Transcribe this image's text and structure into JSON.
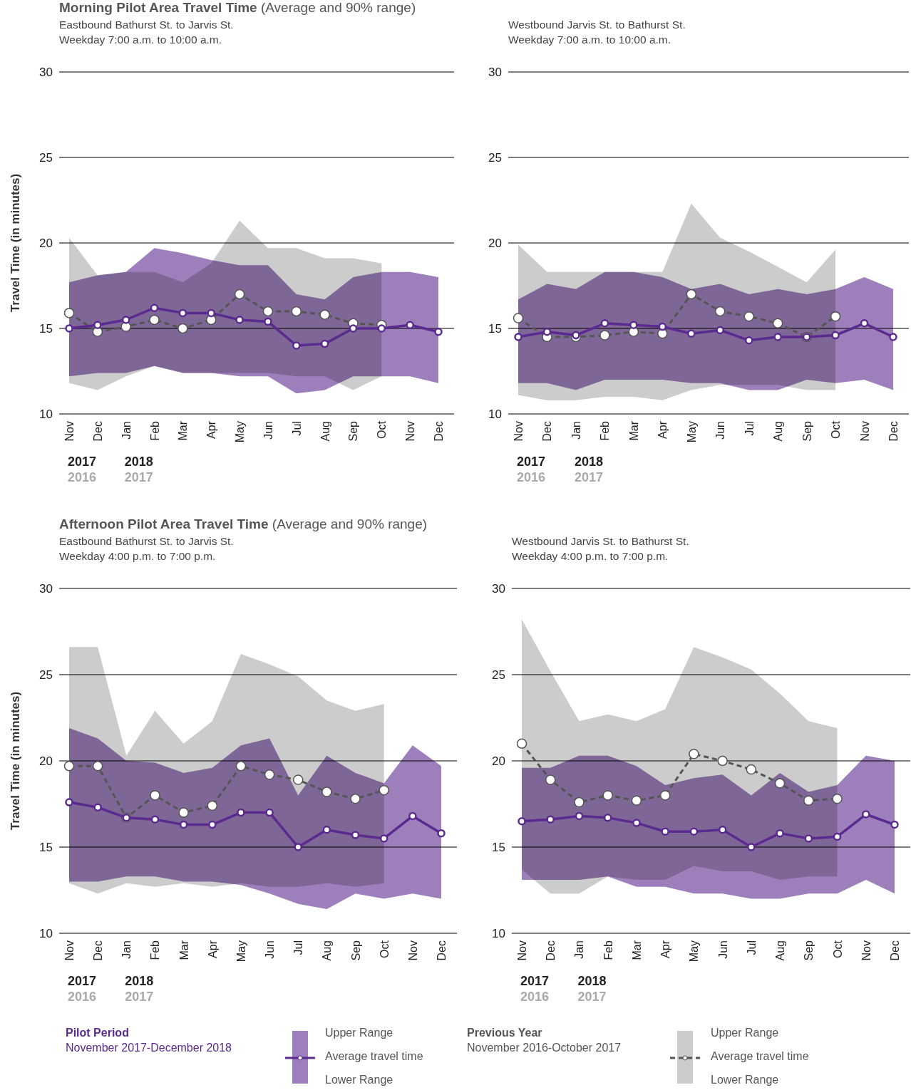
{
  "chart_data": [
    {
      "type": "line",
      "title": "Morning Pilot Area Travel Time (Average and 90% range)",
      "subtitle": "Eastbound Bathurst St. to Jarvis St.\nWeekday 7:00 a.m. to 10:00 a.m.",
      "ylabel": "Travel Time (in minutes)",
      "categories": [
        "Nov",
        "Dec",
        "Jan",
        "Feb",
        "Mar",
        "Apr",
        "May",
        "Jun",
        "Jul",
        "Aug",
        "Sep",
        "Oct",
        "Nov",
        "Dec"
      ],
      "ylim": [
        10,
        30
      ],
      "yticks": [
        10,
        15,
        20,
        25,
        30
      ],
      "grid": "y",
      "marker": "circle",
      "annotations": [
        "2017",
        "2016",
        "2018",
        "2017"
      ],
      "series": [
        {
          "color": "#5b2a8e",
          "values": [
            15.0,
            15.2,
            15.5,
            16.2,
            15.9,
            15.9,
            15.5,
            15.4,
            14.0,
            14.1,
            15.0,
            15.0,
            15.2,
            14.8
          ],
          "upper": [
            17.7,
            18.1,
            18.3,
            19.7,
            19.4,
            19.0,
            18.7,
            18.7,
            17.0,
            16.7,
            18.0,
            18.3,
            18.3,
            18.0
          ],
          "lower": [
            12.2,
            12.4,
            12.4,
            12.8,
            12.4,
            12.4,
            12.2,
            12.2,
            11.2,
            11.4,
            12.2,
            12.2,
            12.2,
            11.8
          ]
        },
        {
          "color": "#555555",
          "line_style": "dashed",
          "values": [
            15.9,
            14.8,
            15.1,
            15.5,
            15.0,
            15.5,
            17.0,
            16.0,
            16.0,
            15.8,
            15.3,
            15.2,
            null,
            null
          ],
          "upper": [
            20.3,
            18.1,
            18.3,
            18.3,
            17.7,
            18.8,
            21.3,
            19.7,
            19.7,
            19.1,
            19.1,
            18.8,
            null,
            null
          ],
          "lower": [
            11.8,
            11.4,
            12.2,
            12.8,
            12.4,
            12.4,
            12.4,
            12.4,
            12.2,
            12.2,
            11.4,
            12.2,
            null,
            null
          ]
        }
      ]
    },
    {
      "type": "line",
      "subtitle": "Westbound Jarvis St. to Bathurst St.\nWeekday 7:00 a.m. to 10:00 a.m.",
      "categories": [
        "Nov",
        "Dec",
        "Jan",
        "Feb",
        "Mar",
        "Apr",
        "May",
        "Jun",
        "Jul",
        "Aug",
        "Sep",
        "Oct",
        "Nov",
        "Dec"
      ],
      "ylim": [
        10,
        30
      ],
      "yticks": [
        10,
        15,
        20,
        25,
        30
      ],
      "grid": "y",
      "marker": "circle",
      "annotations": [
        "2017",
        "2016",
        "2018",
        "2017"
      ],
      "series": [
        {
          "color": "#5b2a8e",
          "values": [
            14.5,
            14.8,
            14.6,
            15.3,
            15.2,
            15.1,
            14.7,
            14.9,
            14.3,
            14.5,
            14.5,
            14.6,
            15.3,
            14.5
          ],
          "upper": [
            16.7,
            17.6,
            17.3,
            18.3,
            18.3,
            18.0,
            17.3,
            17.6,
            17.0,
            17.3,
            17.0,
            17.3,
            18.0,
            17.3
          ],
          "lower": [
            11.8,
            11.8,
            11.4,
            12.0,
            12.0,
            12.0,
            11.8,
            11.8,
            11.4,
            11.4,
            12.0,
            11.8,
            12.0,
            11.4
          ]
        },
        {
          "color": "#555555",
          "line_style": "dashed",
          "values": [
            15.6,
            14.5,
            14.5,
            14.6,
            14.8,
            14.7,
            17.0,
            16.0,
            15.7,
            15.3,
            14.5,
            15.7,
            null,
            null
          ],
          "upper": [
            19.9,
            18.3,
            18.3,
            18.3,
            18.3,
            18.3,
            22.3,
            20.3,
            19.5,
            18.6,
            17.7,
            19.6,
            null,
            null
          ],
          "lower": [
            11.1,
            10.8,
            10.8,
            11.0,
            11.0,
            10.8,
            11.4,
            11.7,
            11.7,
            11.7,
            11.4,
            11.4,
            null,
            null
          ]
        }
      ]
    },
    {
      "type": "line",
      "title": "Afternoon Pilot Area Travel Time (Average and 90% range)",
      "subtitle": "Eastbound Bathurst St. to Jarvis St.\nWeekday 4:00 p.m. to 7:00 p.m.",
      "ylabel": "Travel Time (in minutes)",
      "categories": [
        "Nov",
        "Dec",
        "Jan",
        "Feb",
        "Mar",
        "Apr",
        "May",
        "Jun",
        "Jul",
        "Aug",
        "Sep",
        "Oct",
        "Nov",
        "Dec"
      ],
      "ylim": [
        10,
        30
      ],
      "yticks": [
        10,
        15,
        20,
        25,
        30
      ],
      "grid": "y",
      "marker": "circle",
      "annotations": [
        "2017",
        "2016",
        "2018",
        "2017"
      ],
      "series": [
        {
          "color": "#5b2a8e",
          "values": [
            17.6,
            17.3,
            16.7,
            16.6,
            16.3,
            16.3,
            17.0,
            17.0,
            15.0,
            16.0,
            15.7,
            15.5,
            16.8,
            15.8
          ],
          "upper": [
            21.9,
            21.3,
            20.0,
            19.9,
            19.3,
            19.6,
            20.9,
            21.3,
            18.0,
            20.3,
            19.3,
            18.7,
            20.9,
            19.7
          ],
          "lower": [
            13.0,
            13.0,
            13.3,
            13.3,
            13.0,
            13.0,
            12.8,
            12.3,
            11.7,
            11.4,
            12.3,
            12.0,
            12.3,
            12.0
          ]
        },
        {
          "color": "#555555",
          "line_style": "dashed",
          "values": [
            19.7,
            19.7,
            16.7,
            18.0,
            17.0,
            17.4,
            19.7,
            19.2,
            18.9,
            18.2,
            17.8,
            18.3,
            null,
            null
          ],
          "upper": [
            26.6,
            26.6,
            20.3,
            22.9,
            21.0,
            22.3,
            26.2,
            25.6,
            24.9,
            23.5,
            22.9,
            23.3,
            null,
            null
          ],
          "lower": [
            12.9,
            12.3,
            12.9,
            12.7,
            12.9,
            12.7,
            12.9,
            12.7,
            12.7,
            12.9,
            12.7,
            12.9,
            null,
            null
          ]
        }
      ]
    },
    {
      "type": "line",
      "subtitle": "Westbound Jarvis St. to Bathurst St.\nWeekday 4:00 p.m. to 7:00 p.m.",
      "categories": [
        "Nov",
        "Dec",
        "Jan",
        "Feb",
        "Mar",
        "Apr",
        "May",
        "Jun",
        "Jul",
        "Aug",
        "Sep",
        "Oct",
        "Nov",
        "Dec"
      ],
      "ylim": [
        10,
        30
      ],
      "yticks": [
        10,
        15,
        20,
        25,
        30
      ],
      "grid": "y",
      "marker": "circle",
      "annotations": [
        "2017",
        "2016",
        "2018",
        "2017"
      ],
      "series": [
        {
          "color": "#5b2a8e",
          "values": [
            16.5,
            16.6,
            16.8,
            16.7,
            16.4,
            15.9,
            15.9,
            16.0,
            15.0,
            15.8,
            15.5,
            15.6,
            16.9,
            16.3
          ],
          "upper": [
            19.6,
            19.6,
            20.3,
            20.3,
            19.7,
            18.6,
            19.0,
            19.2,
            18.0,
            19.3,
            18.2,
            18.6,
            20.3,
            20.0
          ],
          "lower": [
            13.1,
            13.1,
            13.1,
            13.3,
            12.7,
            12.7,
            12.3,
            12.3,
            12.0,
            12.0,
            12.3,
            12.3,
            13.1,
            12.3
          ]
        },
        {
          "color": "#555555",
          "line_style": "dashed",
          "values": [
            21.0,
            18.9,
            17.6,
            18.0,
            17.7,
            18.0,
            20.4,
            20.0,
            19.5,
            18.7,
            17.7,
            17.8,
            null,
            null
          ],
          "upper": [
            28.2,
            25.2,
            22.3,
            22.7,
            22.3,
            23.0,
            26.6,
            26.0,
            25.3,
            23.9,
            22.3,
            21.9,
            null,
            null
          ],
          "lower": [
            13.7,
            12.3,
            12.3,
            13.3,
            13.1,
            13.1,
            13.9,
            13.6,
            13.6,
            13.1,
            13.3,
            13.3,
            null,
            null
          ]
        }
      ]
    },
    {
      "type": "other",
      "colors": [
        "#5b2a8e",
        "#555555"
      ],
      "annotations": [
        "Pilot Period",
        "November 2017-December 2018",
        "Upper Range",
        "Average travel time",
        "Lower Range",
        "Previous Year",
        "November 2016-October 2017",
        "Upper Range",
        "Average travel time",
        "Lower Range"
      ]
    }
  ]
}
